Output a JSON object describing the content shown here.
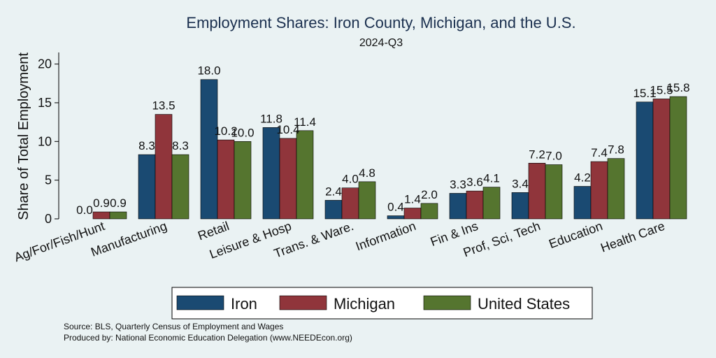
{
  "chart_data": {
    "type": "bar",
    "title": "Employment Shares: Iron County, Michigan, and the U.S.",
    "subtitle": "2024-Q3",
    "ylabel": "Share of Total Employment",
    "xlabel": "",
    "ylim": [
      0,
      21.5
    ],
    "yticks": [
      0,
      5,
      10,
      15,
      20
    ],
    "grid": false,
    "legend_position": "bottom",
    "categories": [
      "Ag/For/Fish/Hunt",
      "Manufacturing",
      "Retail",
      "Leisure & Hosp",
      "Trans. & Ware.",
      "Information",
      "Fin & Ins",
      "Prof, Sci, Tech",
      "Education",
      "Health Care"
    ],
    "series": [
      {
        "name": "Iron",
        "color": "#1a4a72",
        "values": [
          0.0,
          8.3,
          18.0,
          11.8,
          2.4,
          0.4,
          3.3,
          3.4,
          4.2,
          15.1
        ]
      },
      {
        "name": "Michigan",
        "color": "#90353b",
        "values": [
          0.9,
          13.5,
          10.2,
          10.4,
          4.0,
          1.4,
          3.6,
          7.2,
          7.4,
          15.5
        ]
      },
      {
        "name": "United States",
        "color": "#55752f",
        "values": [
          0.9,
          8.3,
          10.0,
          11.4,
          4.8,
          2.0,
          4.1,
          7.0,
          7.8,
          15.8
        ]
      }
    ]
  },
  "footer": {
    "source": "Source: BLS, Quarterly Census of Employment and Wages",
    "produced_by": "Produced by: National Economic Education Delegation (www.NEEDEcon.org)"
  }
}
